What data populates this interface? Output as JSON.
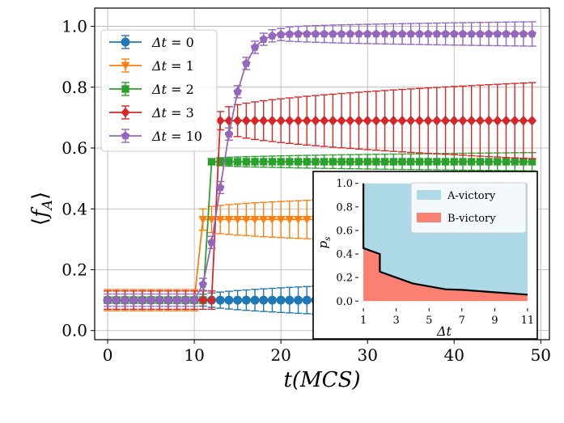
{
  "chart_data": [
    {
      "type": "line",
      "title": "",
      "xlabel": "t(MCS)",
      "ylabel": "⟨f_A⟩",
      "ylabel_parts": {
        "open": "⟨",
        "f": "f",
        "sub": "A",
        "close": "⟩"
      },
      "xlim": [
        -1.5,
        51
      ],
      "ylim": [
        -0.03,
        1.06
      ],
      "xticks": [
        0,
        10,
        20,
        30,
        40,
        50
      ],
      "yticks": [
        0.0,
        0.2,
        0.4,
        0.6,
        0.8,
        1.0
      ],
      "xtick_labels": [
        "0",
        "10",
        "20",
        "30",
        "40",
        "50"
      ],
      "ytick_labels": [
        "0.0",
        "0.2",
        "0.4",
        "0.6",
        "0.8",
        "1.0"
      ],
      "grid": true,
      "legend_position": "top-left",
      "series": [
        {
          "name": "Δt = 0",
          "label_lhs": "Δt",
          "label_rhs": "0",
          "color": "#1f77b4",
          "marker": "circle",
          "switch_time": 10,
          "initial": 0.1,
          "final": 0.1,
          "transition_width": 0,
          "err_start": 0.01,
          "err_end": 0.07,
          "err_growth_start": 10
        },
        {
          "name": "Δt = 1",
          "label_lhs": "Δt",
          "label_rhs": "1",
          "color": "#ff7f0e",
          "marker": "triangle-down",
          "switch_time": 11,
          "initial": 0.1,
          "final": 0.365,
          "transition_width": 0,
          "err_start": 0.035,
          "err_end": 0.085,
          "err_growth_start": 11
        },
        {
          "name": "Δt = 2",
          "label_lhs": "Δt",
          "label_rhs": "2",
          "color": "#2ca02c",
          "marker": "square",
          "switch_time": 12,
          "initial": 0.1,
          "final": 0.555,
          "transition_width": 0,
          "err_start": 0.01,
          "err_end": 0.03,
          "err_growth_start": 12
        },
        {
          "name": "Δt = 3",
          "label_lhs": "Δt",
          "label_rhs": "3",
          "color": "#d62728",
          "marker": "diamond",
          "switch_time": 13,
          "initial": 0.1,
          "final": 0.69,
          "transition_width": 0,
          "err_start": 0.03,
          "err_end": 0.125,
          "err_growth_start": 13
        },
        {
          "name": "Δt = 10",
          "label_lhs": "Δt",
          "label_rhs": "10",
          "color": "#9467bd",
          "marker": "pentagon",
          "switch_time": 10,
          "initial": 0.1,
          "final": 0.975,
          "transition_width": 6,
          "err_start": 0.02,
          "err_end": 0.04,
          "err_growth_start": 20
        }
      ]
    },
    {
      "type": "area",
      "title": "",
      "xlabel": "Δt",
      "ylabel": "p_s",
      "ylabel_parts": {
        "p": "p",
        "sub": "s"
      },
      "xlim": [
        0.7,
        11.3
      ],
      "ylim": [
        -0.06,
        1.06
      ],
      "xticks": [
        1,
        3,
        5,
        7,
        9,
        11
      ],
      "yticks": [
        0.0,
        0.2,
        0.4,
        0.6,
        0.8,
        1.0
      ],
      "xtick_labels": [
        "1",
        "3",
        "5",
        "7",
        "9",
        "11"
      ],
      "ytick_labels": [
        "0.0",
        "0.2",
        "0.4",
        "0.6",
        "0.8",
        "1.0"
      ],
      "legend_position": "top-right",
      "regions": [
        {
          "name": "A-victory",
          "color": "#add8e6"
        },
        {
          "name": "B-victory",
          "color": "#fa8072"
        }
      ],
      "boundary": {
        "x": [
          1,
          1,
          2,
          2,
          3,
          4,
          5,
          6,
          7,
          8,
          9,
          10,
          11
        ],
        "y": [
          1.0,
          0.45,
          0.4,
          0.25,
          0.2,
          0.15,
          0.125,
          0.1,
          0.095,
          0.085,
          0.075,
          0.065,
          0.055
        ]
      }
    }
  ]
}
